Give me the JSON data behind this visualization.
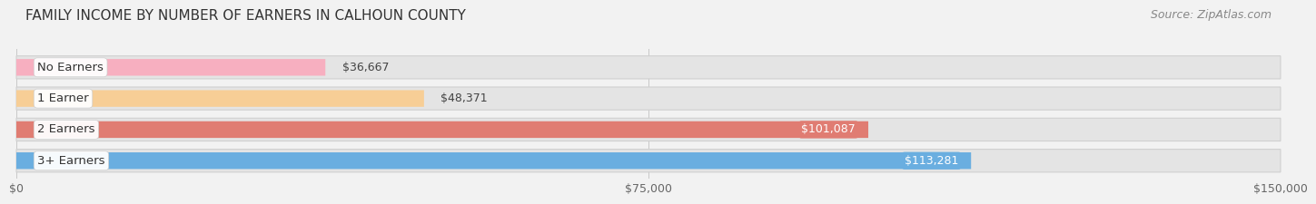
{
  "title": "FAMILY INCOME BY NUMBER OF EARNERS IN CALHOUN COUNTY",
  "source": "Source: ZipAtlas.com",
  "categories": [
    "No Earners",
    "1 Earner",
    "2 Earners",
    "3+ Earners"
  ],
  "values": [
    36667,
    48371,
    101087,
    113281
  ],
  "bar_colors": [
    "#f7afc0",
    "#f7ce96",
    "#e07c72",
    "#6aaee0"
  ],
  "value_labels": [
    "$36,667",
    "$48,371",
    "$101,087",
    "$113,281"
  ],
  "value_inside": [
    false,
    false,
    true,
    true
  ],
  "xlim": [
    0,
    150000
  ],
  "xticks": [
    0,
    75000,
    150000
  ],
  "xticklabels": [
    "$0",
    "$75,000",
    "$150,000"
  ],
  "background_color": "#f2f2f2",
  "bar_bg_color": "#e4e4e4",
  "title_fontsize": 11,
  "source_fontsize": 9,
  "label_fontsize": 9.5,
  "value_fontsize": 9,
  "tick_fontsize": 9
}
